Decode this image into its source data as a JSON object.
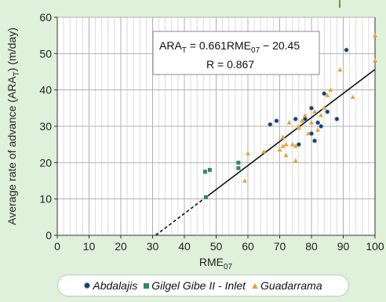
{
  "chart_data": {
    "type": "scatter",
    "xlabel_main": "RME",
    "xlabel_sub": "07",
    "ylabel": "Average rate of advance (ARA",
    "ylabel_sub": "T",
    "ylabel_end": ") (m/day)",
    "xlim": [
      0,
      100
    ],
    "ylim": [
      0,
      60
    ],
    "x_ticks": [
      0,
      10,
      20,
      30,
      40,
      50,
      60,
      70,
      80,
      90,
      100
    ],
    "y_ticks": [
      0,
      10,
      20,
      30,
      40,
      50,
      60
    ],
    "grid": true,
    "annotation": {
      "eq_lhs": "ARA",
      "eq_lhs_sub": "T",
      "eq_mid": " = 0.661RME",
      "eq_mid_sub": "07",
      "eq_rhs": " − 20.45",
      "r_text": "R = 0.867"
    },
    "regression": {
      "slope": 0.661,
      "intercept": -20.45,
      "dashed_x": [
        31,
        46.5
      ],
      "solid_x": [
        46.5,
        100
      ]
    },
    "series": [
      {
        "name": "Abdalajis",
        "marker": "circle",
        "color": "#1a3a66",
        "points": [
          [
            67,
            30.5
          ],
          [
            69,
            31.5
          ],
          [
            75,
            32
          ],
          [
            76,
            25
          ],
          [
            78,
            32
          ],
          [
            80,
            35
          ],
          [
            80,
            28
          ],
          [
            81,
            26
          ],
          [
            82,
            31
          ],
          [
            83,
            30
          ],
          [
            84,
            39
          ],
          [
            85,
            34
          ],
          [
            88,
            32
          ],
          [
            91,
            51
          ]
        ]
      },
      {
        "name": "Gilgel Gibe II - Inlet",
        "marker": "square",
        "color": "#2e8a63",
        "points": [
          [
            46.5,
            17.5
          ],
          [
            48,
            18
          ],
          [
            57,
            20
          ],
          [
            57,
            18.5
          ],
          [
            46.8,
            10.5
          ]
        ]
      },
      {
        "name": "Guadarrama",
        "marker": "triangle",
        "color": "#e3a33b",
        "points": [
          [
            59,
            15
          ],
          [
            60,
            22.5
          ],
          [
            65,
            23
          ],
          [
            70,
            23.5
          ],
          [
            71,
            24.5
          ],
          [
            71,
            27
          ],
          [
            72,
            25
          ],
          [
            72,
            22
          ],
          [
            73,
            31
          ],
          [
            74,
            25
          ],
          [
            75,
            24.5
          ],
          [
            75,
            20.5
          ],
          [
            76,
            30
          ],
          [
            76,
            29.5
          ],
          [
            77,
            31.5
          ],
          [
            78,
            33
          ],
          [
            79,
            28
          ],
          [
            80,
            31
          ],
          [
            81,
            34
          ],
          [
            82,
            29
          ],
          [
            83,
            33
          ],
          [
            84,
            35
          ],
          [
            85,
            38.5
          ],
          [
            86,
            40
          ],
          [
            89,
            45.5
          ],
          [
            93,
            38
          ],
          [
            100,
            48
          ],
          [
            100,
            55
          ]
        ]
      }
    ]
  }
}
